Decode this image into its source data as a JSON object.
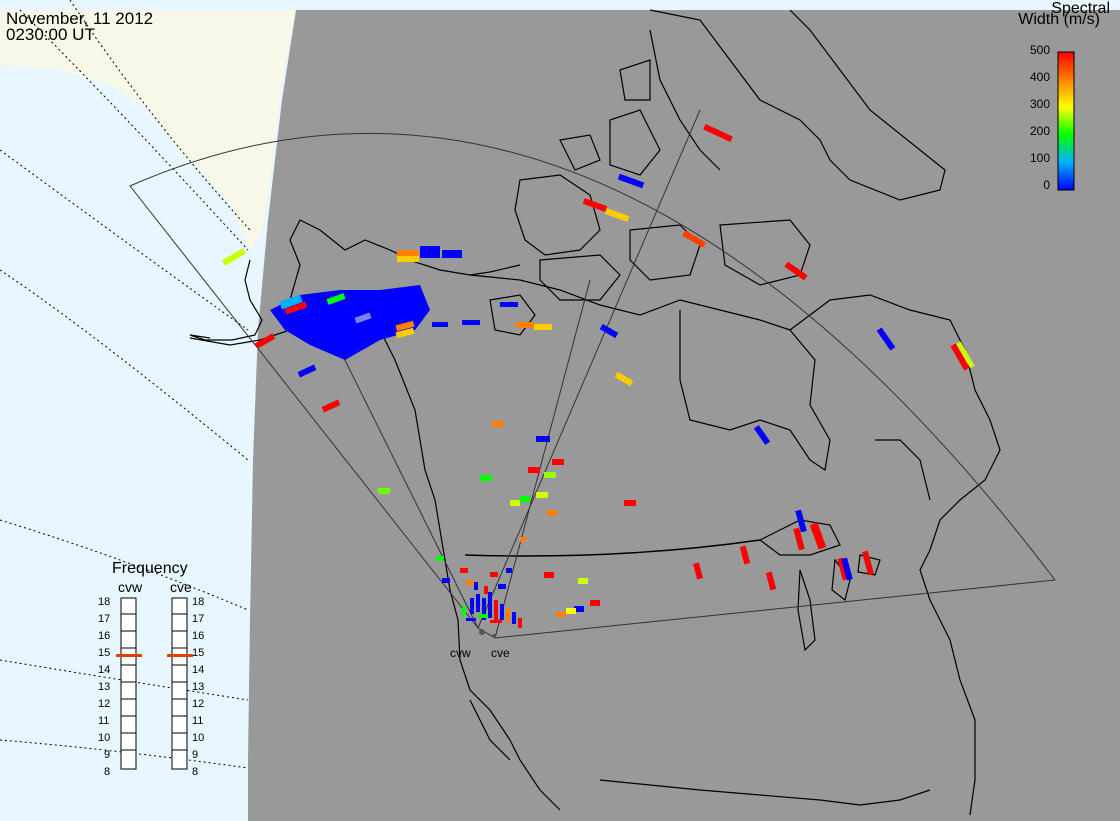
{
  "header": {
    "date": "November, 11 2012",
    "time": "0230:00 UT"
  },
  "colorbar": {
    "title_line1": "Spectral",
    "title_line2": "Width (m/s)",
    "ticks": [
      "500",
      "400",
      "300",
      "200",
      "100",
      "0"
    ],
    "range": [
      0,
      500
    ],
    "colors": [
      "#ff0000",
      "#ff8000",
      "#ffff00",
      "#00ff00",
      "#00b0ff",
      "#0000ff"
    ]
  },
  "frequency_panel": {
    "title": "Frequency",
    "radars": [
      {
        "name": "cvw",
        "selected_mhz": 15
      },
      {
        "name": "cve",
        "selected_mhz": 15
      }
    ],
    "scale_mhz": [
      "18",
      "17",
      "16",
      "15",
      "14",
      "13",
      "12",
      "11",
      "10",
      "9",
      "8"
    ],
    "marker_color": "#e04000"
  },
  "sites": {
    "cvw": "cvw",
    "cve": "cve"
  },
  "map_colors": {
    "ocean": "#e8f6ff",
    "land_dark": "#999999",
    "land_light": "#f8f8e8",
    "coast": "#000000"
  }
}
